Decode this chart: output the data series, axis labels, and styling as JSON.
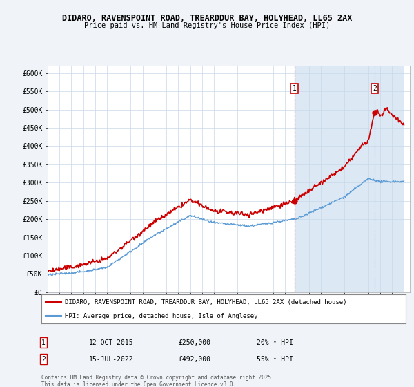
{
  "title_line1": "DIDARO, RAVENSPOINT ROAD, TREARDDUR BAY, HOLYHEAD, LL65 2AX",
  "title_line2": "Price paid vs. HM Land Registry's House Price Index (HPI)",
  "ylim": [
    0,
    620000
  ],
  "yticks": [
    0,
    50000,
    100000,
    150000,
    200000,
    250000,
    300000,
    350000,
    400000,
    450000,
    500000,
    550000,
    600000
  ],
  "x_start_year": 1995,
  "x_end_year": 2025,
  "legend_house_label": "DIDARO, RAVENSPOINT ROAD, TREARDDUR BAY, HOLYHEAD, LL65 2AX (detached house)",
  "legend_hpi_label": "HPI: Average price, detached house, Isle of Anglesey",
  "house_color": "#cc0000",
  "hpi_color": "#5b9bd5",
  "shade_color": "#dce9f5",
  "purchase1_date": "12-OCT-2015",
  "purchase1_price": 250000,
  "purchase1_pct": "20%",
  "purchase1_year": 2015.78,
  "purchase2_date": "15-JUL-2022",
  "purchase2_price": 492000,
  "purchase2_pct": "55%",
  "purchase2_year": 2022.54,
  "footer_text": "Contains HM Land Registry data © Crown copyright and database right 2025.\nThis data is licensed under the Open Government Licence v3.0.",
  "background_color": "#f0f4f8",
  "plot_bg_color": "#ffffff",
  "grid_color": "#c8d8e8",
  "vline1_color": "#cc0000",
  "vline2_color": "#5b9bd5",
  "marker_color": "#cc0000"
}
